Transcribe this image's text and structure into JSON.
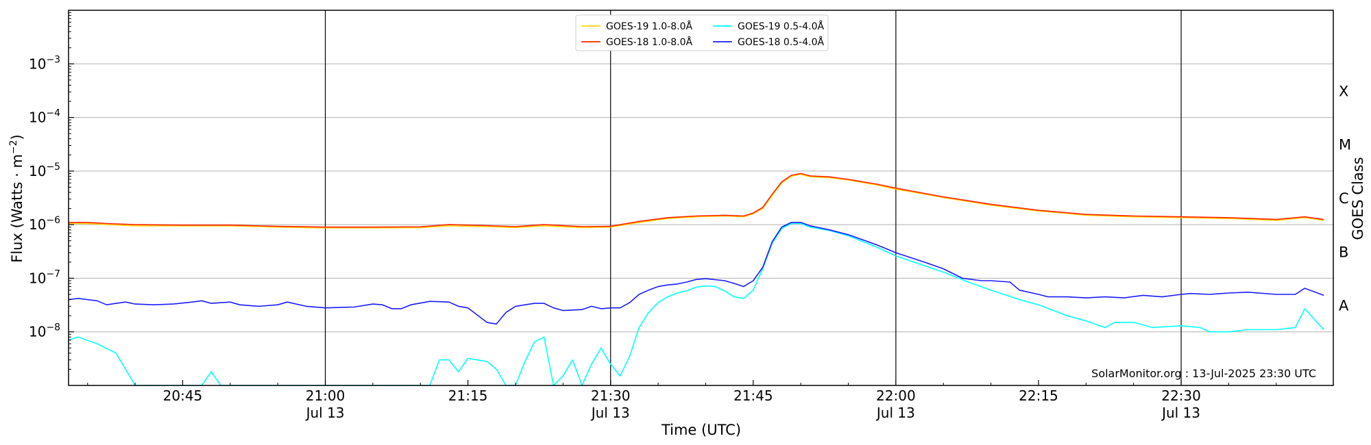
{
  "chart_data": {
    "type": "line",
    "xlabel": "Time (UTC)",
    "ylabel": "Flux (Watts · m",
    "ylabel_sup": "−2",
    "ylabel_close": ")",
    "y2label": "GOES Class",
    "yscale": "log",
    "xlim": [
      "20:33",
      "22:46"
    ],
    "ylim_exp": [
      -9,
      -2
    ],
    "grid": "horizontal",
    "legend_position": "top-center",
    "annotation": "SolarMonitor.org : 13-Jul-2025 23:30 UTC",
    "x_ticks": [
      {
        "t": "20:45",
        "label": "20:45",
        "sub": ""
      },
      {
        "t": "21:00",
        "label": "21:00",
        "sub": "Jul 13"
      },
      {
        "t": "21:15",
        "label": "21:15",
        "sub": ""
      },
      {
        "t": "21:30",
        "label": "21:30",
        "sub": "Jul 13"
      },
      {
        "t": "21:45",
        "label": "21:45",
        "sub": ""
      },
      {
        "t": "22:00",
        "label": "22:00",
        "sub": "Jul 13"
      },
      {
        "t": "22:15",
        "label": "22:15",
        "sub": ""
      },
      {
        "t": "22:30",
        "label": "22:30",
        "sub": "Jul 13"
      }
    ],
    "vlines": [
      "21:00",
      "21:30",
      "22:00",
      "22:30"
    ],
    "y_ticks": [
      {
        "exp": -8,
        "label": "10",
        "sup": "−8"
      },
      {
        "exp": -7,
        "label": "10",
        "sup": "−7"
      },
      {
        "exp": -6,
        "label": "10",
        "sup": "−6"
      },
      {
        "exp": -5,
        "label": "10",
        "sup": "−5"
      },
      {
        "exp": -4,
        "label": "10",
        "sup": "−4"
      },
      {
        "exp": -3,
        "label": "10",
        "sup": "−3"
      }
    ],
    "goes_classes": [
      {
        "label": "A",
        "exp": -7.5
      },
      {
        "label": "B",
        "exp": -6.5
      },
      {
        "label": "C",
        "exp": -5.5
      },
      {
        "label": "M",
        "exp": -4.5
      },
      {
        "label": "X",
        "exp": -3.5
      }
    ],
    "series": [
      {
        "name": "GOES-19 1.0-8.0Å",
        "color": "#ffd700",
        "x": [
          "20:33",
          "20:35",
          "20:37",
          "20:40",
          "20:45",
          "20:50",
          "20:55",
          "21:00",
          "21:05",
          "21:10",
          "21:13",
          "21:17",
          "21:20",
          "21:23",
          "21:27",
          "21:30",
          "21:33",
          "21:36",
          "21:39",
          "21:42",
          "21:44",
          "21:45",
          "21:46",
          "21:47",
          "21:48",
          "21:49",
          "21:50",
          "21:51",
          "21:53",
          "21:55",
          "21:58",
          "22:00",
          "22:05",
          "22:10",
          "22:15",
          "22:20",
          "22:25",
          "22:30",
          "22:35",
          "22:40",
          "22:42",
          "22:43",
          "22:45"
        ],
        "y": [
          1.05e-06,
          1.05e-06,
          1e-06,
          9.5e-07,
          9.5e-07,
          9.5e-07,
          9e-07,
          8.7e-07,
          8.7e-07,
          8.8e-07,
          9.5e-07,
          9.2e-07,
          8.8e-07,
          9.5e-07,
          8.8e-07,
          9e-07,
          1.1e-06,
          1.3e-06,
          1.4e-06,
          1.45e-06,
          1.4e-06,
          1.6e-06,
          2e-06,
          3.5e-06,
          6e-06,
          8e-06,
          8.7e-06,
          7.8e-06,
          7.5e-06,
          6.8e-06,
          5.5e-06,
          4.6e-06,
          3.2e-06,
          2.3e-06,
          1.8e-06,
          1.5e-06,
          1.4e-06,
          1.35e-06,
          1.3e-06,
          1.2e-06,
          1.3e-06,
          1.35e-06,
          1.2e-06
        ]
      },
      {
        "name": "GOES-18 1.0-8.0Å",
        "color": "#ff2200",
        "x": [
          "20:33",
          "20:35",
          "20:37",
          "20:40",
          "20:45",
          "20:50",
          "20:55",
          "21:00",
          "21:05",
          "21:10",
          "21:13",
          "21:17",
          "21:20",
          "21:23",
          "21:27",
          "21:30",
          "21:33",
          "21:36",
          "21:39",
          "21:42",
          "21:44",
          "21:45",
          "21:46",
          "21:47",
          "21:48",
          "21:49",
          "21:50",
          "21:51",
          "21:53",
          "21:55",
          "21:58",
          "22:00",
          "22:05",
          "22:10",
          "22:15",
          "22:20",
          "22:25",
          "22:30",
          "22:35",
          "22:40",
          "22:42",
          "22:43",
          "22:45"
        ],
        "y": [
          1.1e-06,
          1.1e-06,
          1.05e-06,
          1e-06,
          9.8e-07,
          9.8e-07,
          9.3e-07,
          9e-07,
          9e-07,
          9.1e-07,
          1e-06,
          9.6e-07,
          9.2e-07,
          1e-06,
          9.2e-07,
          9.3e-07,
          1.15e-06,
          1.35e-06,
          1.45e-06,
          1.5e-06,
          1.45e-06,
          1.65e-06,
          2.1e-06,
          3.7e-06,
          6.3e-06,
          8.3e-06,
          9e-06,
          8.1e-06,
          7.8e-06,
          7e-06,
          5.7e-06,
          4.8e-06,
          3.3e-06,
          2.4e-06,
          1.85e-06,
          1.55e-06,
          1.45e-06,
          1.4e-06,
          1.35e-06,
          1.25e-06,
          1.35e-06,
          1.4e-06,
          1.25e-06
        ]
      },
      {
        "name": "GOES-19 0.5-4.0Å",
        "color": "#00ffff",
        "x": [
          "20:33",
          "20:34",
          "20:36",
          "20:38",
          "20:40",
          "20:45",
          "20:47",
          "20:48",
          "20:49",
          "21:00",
          "21:05",
          "21:10",
          "21:11",
          "21:12",
          "21:13",
          "21:14",
          "21:15",
          "21:17",
          "21:18",
          "21:19",
          "21:20",
          "21:21",
          "21:22",
          "21:23",
          "21:24",
          "21:25",
          "21:26",
          "21:27",
          "21:28",
          "21:29",
          "21:30",
          "21:31",
          "21:32",
          "21:33",
          "21:34",
          "21:35",
          "21:36",
          "21:37",
          "21:38",
          "21:39",
          "21:40",
          "21:41",
          "21:42",
          "21:43",
          "21:44",
          "21:45",
          "21:46",
          "21:47",
          "21:48",
          "21:49",
          "21:50",
          "21:51",
          "21:53",
          "21:55",
          "21:58",
          "22:00",
          "22:05",
          "22:08",
          "22:10",
          "22:13",
          "22:15",
          "22:18",
          "22:20",
          "22:22",
          "22:23",
          "22:25",
          "22:27",
          "22:30",
          "22:32",
          "22:33",
          "22:35",
          "22:37",
          "22:40",
          "22:42",
          "22:43",
          "22:45"
        ],
        "y": [
          7e-09,
          8e-09,
          6e-09,
          4e-09,
          1e-09,
          1e-09,
          1e-09,
          1.8e-09,
          1e-09,
          1e-09,
          1e-09,
          1e-09,
          1e-09,
          3e-09,
          3e-09,
          1.8e-09,
          3.2e-09,
          2.8e-09,
          2e-09,
          1e-09,
          1e-09,
          2.8e-09,
          6.5e-09,
          8e-09,
          1e-09,
          1.5e-09,
          3e-09,
          1e-09,
          2.5e-09,
          5e-09,
          2.5e-09,
          1.5e-09,
          3.5e-09,
          1.2e-08,
          2.3e-08,
          3.5e-08,
          4.5e-08,
          5.3e-08,
          5.8e-08,
          6.8e-08,
          7.2e-08,
          7e-08,
          5.8e-08,
          4.5e-08,
          4.2e-08,
          6e-08,
          1.5e-07,
          4.5e-07,
          8.5e-07,
          1.05e-06,
          1.05e-06,
          9e-07,
          7.8e-07,
          6.2e-07,
          3.8e-07,
          2.6e-07,
          1.3e-07,
          8e-08,
          6e-08,
          4e-08,
          3.2e-08,
          2e-08,
          1.6e-08,
          1.2e-08,
          1.5e-08,
          1.5e-08,
          1.2e-08,
          1.3e-08,
          1.2e-08,
          1e-08,
          1e-08,
          1.1e-08,
          1.1e-08,
          1.2e-08,
          2.7e-08,
          1.1e-08
        ]
      },
      {
        "name": "GOES-18 0.5-4.0Å",
        "color": "#1a1aff",
        "x": [
          "20:33",
          "20:34",
          "20:36",
          "20:37",
          "20:38",
          "20:39",
          "20:40",
          "20:42",
          "20:44",
          "20:46",
          "20:47",
          "20:48",
          "20:50",
          "20:51",
          "20:53",
          "20:55",
          "20:56",
          "20:58",
          "21:00",
          "21:03",
          "21:05",
          "21:06",
          "21:07",
          "21:08",
          "21:09",
          "21:11",
          "21:13",
          "21:14",
          "21:15",
          "21:17",
          "21:18",
          "21:19",
          "21:20",
          "21:21",
          "21:22",
          "21:23",
          "21:24",
          "21:25",
          "21:27",
          "21:28",
          "21:29",
          "21:30",
          "21:31",
          "21:32",
          "21:33",
          "21:34",
          "21:35",
          "21:36",
          "21:37",
          "21:38",
          "21:39",
          "21:40",
          "21:42",
          "21:43",
          "21:44",
          "21:45",
          "21:46",
          "21:47",
          "21:48",
          "21:49",
          "21:50",
          "21:51",
          "21:53",
          "21:55",
          "21:58",
          "22:00",
          "22:03",
          "22:05",
          "22:07",
          "22:09",
          "22:10",
          "22:12",
          "22:13",
          "22:15",
          "22:16",
          "22:18",
          "22:20",
          "22:22",
          "22:24",
          "22:26",
          "22:28",
          "22:30",
          "22:31",
          "22:33",
          "22:35",
          "22:37",
          "22:40",
          "22:42",
          "22:43",
          "22:45"
        ],
        "y": [
          4e-08,
          4.2e-08,
          3.8e-08,
          3.2e-08,
          3.4e-08,
          3.6e-08,
          3.3e-08,
          3.2e-08,
          3.3e-08,
          3.6e-08,
          3.8e-08,
          3.4e-08,
          3.6e-08,
          3.2e-08,
          3e-08,
          3.2e-08,
          3.6e-08,
          3e-08,
          2.8e-08,
          2.9e-08,
          3.3e-08,
          3.2e-08,
          2.7e-08,
          2.7e-08,
          3.2e-08,
          3.7e-08,
          3.6e-08,
          3e-08,
          2.8e-08,
          1.5e-08,
          1.4e-08,
          2.3e-08,
          3e-08,
          3.2e-08,
          3.4e-08,
          3.4e-08,
          2.8e-08,
          2.5e-08,
          2.6e-08,
          3e-08,
          2.7e-08,
          2.8e-08,
          2.8e-08,
          3.5e-08,
          5e-08,
          6e-08,
          7e-08,
          7.5e-08,
          7.8e-08,
          8.5e-08,
          9.5e-08,
          9.8e-08,
          9e-08,
          8e-08,
          7e-08,
          9e-08,
          1.6e-07,
          4.8e-07,
          9e-07,
          1.1e-06,
          1.1e-06,
          9.5e-07,
          8e-07,
          6.5e-07,
          4.2e-07,
          3e-07,
          2e-07,
          1.5e-07,
          1e-07,
          9e-08,
          9e-08,
          8.5e-08,
          6e-08,
          5e-08,
          4.5e-08,
          4.5e-08,
          4.3e-08,
          4.5e-08,
          4.3e-08,
          4.8e-08,
          4.5e-08,
          5e-08,
          5.2e-08,
          5e-08,
          5.3e-08,
          5.5e-08,
          5e-08,
          5e-08,
          6.5e-08,
          4.8e-08
        ]
      }
    ]
  }
}
